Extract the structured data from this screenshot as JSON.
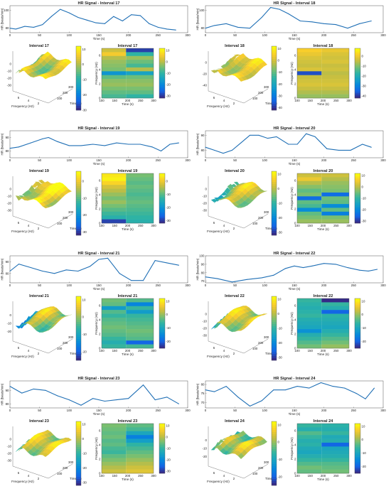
{
  "colors": {
    "line": "#1f6fb5",
    "axis": "#555555",
    "grid_bg": "#ffffff"
  },
  "colormap": "parula",
  "common": {
    "hr_x_label": "Time (s)",
    "hr_y_label": "HR (beats/min)",
    "hr_x_ticks": [
      "0",
      "50",
      "100",
      "150",
      "200",
      "250",
      "300"
    ],
    "spec_y_label": "Frequency (Hz)",
    "spec_x_label": "Time (s)",
    "spec_x_ticks": [
      "100",
      "150",
      "200",
      "250",
      "300"
    ],
    "spec_y_ticks": [
      "0",
      "2",
      "4",
      "6"
    ],
    "surf_x_label": "Frequency (Hz)",
    "surf_y_label": "Time (s)",
    "surf_freq_ticks": [
      "6",
      "4",
      "2"
    ],
    "surf_time_ticks": [
      "100",
      "200",
      "300"
    ]
  },
  "chart_data": [
    {
      "type": "line",
      "interval": "17",
      "title": "HR Signal - Interval 17",
      "surface_title": "Interval 17",
      "spectrogram_title": "Interval 17",
      "xlabel": "Time (s)",
      "ylabel": "HR (beats/min)",
      "xlim": [
        0,
        300
      ],
      "ylim": [
        75,
        105
      ],
      "y_ticks": [
        "80",
        "100"
      ],
      "x": [
        0,
        10,
        25,
        40,
        55,
        70,
        85,
        100,
        115,
        130,
        145,
        160,
        175,
        190,
        205,
        220,
        235,
        250,
        265,
        280
      ],
      "y": [
        80,
        79,
        82,
        81,
        84,
        93,
        101,
        97,
        92,
        89,
        86,
        85,
        93,
        88,
        95,
        94,
        85,
        81,
        79,
        78
      ],
      "surface": {
        "zlim": [
          -30,
          10
        ],
        "z_ticks": [
          "0",
          "-10",
          "-20",
          "-30"
        ],
        "cb_ticks": [
          "10",
          "0",
          "-10",
          "-20",
          "-30"
        ],
        "cb_range": [
          -30,
          12
        ]
      },
      "spectrogram": {
        "cb_ticks": [
          "10",
          "0",
          "-10",
          "-20",
          "-30"
        ],
        "cb_range": [
          -32,
          12
        ],
        "levels": [
          2,
          6,
          0,
          -2,
          -3,
          -4,
          -18,
          -6,
          -3,
          -2,
          -4,
          -6,
          -8
        ],
        "levels_right": [
          -30,
          -10,
          -2,
          -5,
          -8,
          0,
          -15,
          -5,
          -3,
          -2,
          -4,
          -6,
          -10
        ]
      }
    },
    {
      "type": "line",
      "interval": "18",
      "title": "HR Signal - Interval 18",
      "surface_title": "Interval 18",
      "spectrogram_title": "Interval 18",
      "xlabel": "Time (s)",
      "ylabel": "HR (beats/min)",
      "xlim": [
        0,
        300
      ],
      "ylim": [
        75,
        105
      ],
      "y_ticks": [
        "80",
        "100"
      ],
      "x": [
        0,
        15,
        35,
        55,
        75,
        95,
        110,
        125,
        140,
        160,
        180,
        200,
        220,
        240,
        260,
        280
      ],
      "y": [
        80,
        83,
        85,
        81,
        80,
        92,
        103,
        101,
        96,
        88,
        87,
        85,
        84,
        80,
        85,
        88
      ],
      "surface": {
        "zlim": [
          -40,
          10
        ],
        "z_ticks": [
          "0",
          "-20",
          "-40"
        ],
        "cb_ticks": [
          "10",
          "0",
          "-10",
          "-20",
          "-30",
          "-40"
        ],
        "cb_range": [
          -42,
          12
        ]
      },
      "spectrogram": {
        "cb_ticks": [
          "0",
          "-10",
          "-20",
          "-30",
          "-40"
        ],
        "cb_range": [
          -42,
          8
        ],
        "levels": [
          2,
          0,
          -2,
          -3,
          -4,
          -2,
          -38,
          -4,
          -3,
          -2,
          -4,
          -6,
          -8
        ],
        "levels_right": [
          0,
          -2,
          -3,
          -2,
          -4,
          -3,
          -5,
          -4,
          -3,
          -2,
          -4,
          -6,
          -8
        ]
      }
    },
    {
      "type": "line",
      "interval": "19",
      "title": "HR Signal - Interval 19",
      "surface_title": "Interval 19",
      "spectrogram_title": "Interval 19",
      "xlabel": "Time (s)",
      "ylabel": "HR (beats/min)",
      "xlim": [
        0,
        300
      ],
      "ylim": [
        75,
        95
      ],
      "y_ticks": [
        "80",
        "90"
      ],
      "x": [
        0,
        15,
        35,
        55,
        65,
        80,
        100,
        120,
        140,
        160,
        180,
        200,
        220,
        240,
        255,
        270,
        285
      ],
      "y": [
        82,
        83,
        86,
        89,
        90,
        87,
        84,
        84,
        85,
        84,
        86,
        85,
        85,
        83,
        80,
        85,
        86
      ],
      "surface": {
        "zlim": [
          -30,
          10
        ],
        "z_ticks": [
          "0",
          "-10",
          "-20",
          "-30"
        ],
        "cb_ticks": [
          "0",
          "-10",
          "-20",
          "-30"
        ],
        "cb_range": [
          -32,
          6
        ]
      },
      "spectrogram": {
        "cb_ticks": [
          "0",
          "-10",
          "-20",
          "-30"
        ],
        "cb_range": [
          -32,
          6
        ],
        "levels": [
          4,
          5,
          2,
          -2,
          -4,
          -6,
          -8,
          -6,
          -8,
          -10,
          -12,
          -14,
          -30
        ],
        "levels_right": [
          -8,
          -9,
          -10,
          -9,
          -10,
          -11,
          -10,
          -9,
          -10,
          -11,
          -12,
          -13,
          -14
        ]
      }
    },
    {
      "type": "line",
      "interval": "20",
      "title": "HR Signal - Interval 20",
      "surface_title": "Interval 20",
      "spectrogram_title": "Interval 20",
      "xlabel": "Time (s)",
      "ylabel": "HR (beats/min)",
      "xlim": [
        0,
        300
      ],
      "ylim": [
        75,
        93
      ],
      "y_ticks": [
        "80",
        "90"
      ],
      "x": [
        0,
        15,
        30,
        45,
        60,
        75,
        90,
        105,
        120,
        140,
        155,
        170,
        185,
        205,
        225,
        245,
        265,
        280
      ],
      "y": [
        82,
        80,
        78,
        80,
        85,
        90,
        90,
        88,
        89,
        84,
        84,
        91,
        89,
        81,
        80,
        80,
        84,
        82
      ],
      "surface": {
        "zlim": [
          -30,
          10
        ],
        "z_ticks": [
          "0",
          "-10",
          "-20",
          "-30"
        ],
        "cb_ticks": [
          "10",
          "0",
          "-10",
          "-20",
          "-30"
        ],
        "cb_range": [
          -32,
          12
        ]
      },
      "spectrogram": {
        "cb_ticks": [
          "10",
          "0",
          "-10",
          "-20",
          "-30"
        ],
        "cb_range": [
          -32,
          12
        ],
        "levels": [
          2,
          5,
          0,
          -3,
          -6,
          -4,
          -25,
          -6,
          -8,
          -20,
          -6,
          -4,
          -2
        ],
        "levels_right": [
          2,
          0,
          -2,
          -3,
          -4,
          -25,
          -5,
          -6,
          -20,
          -6,
          -22,
          -4,
          -2
        ]
      }
    },
    {
      "type": "line",
      "interval": "21",
      "title": "HR Signal - Interval 21",
      "surface_title": "Interval 21",
      "spectrogram_title": "Interval 21",
      "xlabel": "Time (s)",
      "ylabel": "HR (beats/min)",
      "xlim": [
        0,
        300
      ],
      "ylim": [
        72,
        95
      ],
      "y_ticks": [
        "80",
        "90"
      ],
      "x": [
        0,
        15,
        35,
        55,
        75,
        95,
        115,
        135,
        150,
        165,
        185,
        205,
        225,
        245,
        265,
        285
      ],
      "y": [
        82,
        88,
        85,
        82,
        80,
        83,
        82,
        86,
        92,
        93,
        80,
        74,
        74,
        91,
        89,
        87
      ],
      "surface": {
        "zlim": [
          -25,
          10
        ],
        "z_ticks": [
          "0",
          "-10",
          "-20"
        ],
        "cb_ticks": [
          "10",
          "0",
          "-10",
          "-20"
        ],
        "cb_range": [
          -25,
          12
        ]
      },
      "spectrogram": {
        "cb_ticks": [
          "10",
          "0",
          "-10",
          "-20"
        ],
        "cb_range": [
          -25,
          12
        ],
        "levels": [
          -2,
          -3,
          -12,
          -4,
          -6,
          -4,
          -3,
          -2,
          -3,
          -4,
          -6,
          -8,
          -6
        ],
        "levels_right": [
          -4,
          -16,
          -6,
          -12,
          -6,
          -5,
          -4,
          -3,
          -2,
          -3,
          -4,
          -20,
          -5
        ]
      }
    },
    {
      "type": "line",
      "interval": "22",
      "title": "HR Signal - Interval 22",
      "surface_title": "Interval 22",
      "spectrogram_title": "Interval 22",
      "xlabel": "Time (s)",
      "ylabel": "HR (beats/min)",
      "xlim": [
        0,
        300
      ],
      "ylim": [
        68,
        100
      ],
      "y_ticks": [
        "70",
        "80",
        "90",
        "100"
      ],
      "x": [
        0,
        20,
        45,
        70,
        95,
        115,
        135,
        150,
        165,
        180,
        200,
        220,
        240,
        260,
        275,
        290
      ],
      "y": [
        75,
        73,
        69,
        72,
        74,
        77,
        85,
        88,
        86,
        88,
        91,
        90,
        86,
        83,
        82,
        84
      ],
      "surface": {
        "zlim": [
          -30,
          10
        ],
        "z_ticks": [
          "0",
          "-10",
          "-20",
          "-30"
        ],
        "cb_ticks": [
          "10",
          "0",
          "-10",
          "-20",
          "-30"
        ],
        "cb_range": [
          -32,
          12
        ]
      },
      "spectrogram": {
        "cb_ticks": [
          "10",
          "0",
          "-10",
          "-20"
        ],
        "cb_range": [
          -25,
          12
        ],
        "levels": [
          -6,
          -7,
          -8,
          -7,
          -6,
          -8,
          -9,
          -10,
          -14,
          -8,
          -6,
          -4,
          -2
        ],
        "levels_right": [
          -30,
          -6,
          -8,
          -20,
          -7,
          -8,
          -9,
          -10,
          -8,
          -6,
          -4,
          -2,
          0
        ]
      }
    },
    {
      "type": "line",
      "interval": "23",
      "title": "HR Signal - Interval 23",
      "surface_title": "Interval 23",
      "spectrogram_title": "Interval 23",
      "xlabel": "Time (s)",
      "ylabel": "HR (beats/min)",
      "xlim": [
        0,
        300
      ],
      "ylim": [
        77,
        97
      ],
      "y_ticks": [
        "80",
        "90"
      ],
      "x": [
        0,
        20,
        40,
        60,
        80,
        100,
        120,
        140,
        160,
        180,
        200,
        225,
        245,
        265,
        285
      ],
      "y": [
        93,
        88,
        91,
        90,
        86,
        83,
        79,
        84,
        82,
        83,
        84,
        94,
        83,
        85,
        80
      ],
      "surface": {
        "zlim": [
          -30,
          10
        ],
        "z_ticks": [
          "0",
          "-10",
          "-20",
          "-30"
        ],
        "cb_ticks": [
          "10",
          "0",
          "-10",
          "-20",
          "-30"
        ],
        "cb_range": [
          -32,
          12
        ]
      },
      "spectrogram": {
        "cb_ticks": [
          "10",
          "0",
          "-10",
          "-20",
          "-30"
        ],
        "cb_range": [
          -32,
          12
        ],
        "levels": [
          -4,
          -5,
          -6,
          -5,
          -7,
          -6,
          -8,
          -9,
          -6,
          -4,
          -2,
          0,
          2
        ],
        "levels_right": [
          -6,
          -8,
          -14,
          -22,
          -16,
          -10,
          -8,
          -6,
          -4,
          -2,
          0,
          2,
          4
        ]
      }
    },
    {
      "type": "line",
      "interval": "24",
      "title": "HR Signal - Interval 24",
      "surface_title": "Interval 24",
      "spectrogram_title": "Interval 24",
      "xlabel": "Time (s)",
      "ylabel": "HR (beats/min)",
      "xlim": [
        0,
        300
      ],
      "ylim": [
        67,
        82
      ],
      "y_ticks": [
        "70",
        "75",
        "80"
      ],
      "x": [
        0,
        15,
        35,
        55,
        75,
        95,
        115,
        135,
        155,
        175,
        195,
        215,
        235,
        255,
        270,
        285
      ],
      "y": [
        77,
        76,
        79,
        73,
        68,
        71,
        77,
        77,
        79,
        78,
        81,
        79,
        78,
        75,
        72,
        78
      ],
      "surface": {
        "zlim": [
          -25,
          10
        ],
        "z_ticks": [
          "0",
          "-10",
          "-20"
        ],
        "cb_ticks": [
          "10",
          "0",
          "-10",
          "-20"
        ],
        "cb_range": [
          -25,
          12
        ]
      },
      "spectrogram": {
        "cb_ticks": [
          "10",
          "0",
          "-10",
          "-20"
        ],
        "cb_range": [
          -25,
          12
        ],
        "levels": [
          -6,
          -8,
          -4,
          -6,
          -8,
          -7,
          -9,
          -10,
          -8,
          -6,
          -4,
          -2,
          -3
        ],
        "levels_right": [
          -7,
          -8,
          -6,
          -9,
          -8,
          -20,
          -10,
          -9,
          -8,
          -6,
          -4,
          -3,
          -2
        ]
      }
    }
  ]
}
